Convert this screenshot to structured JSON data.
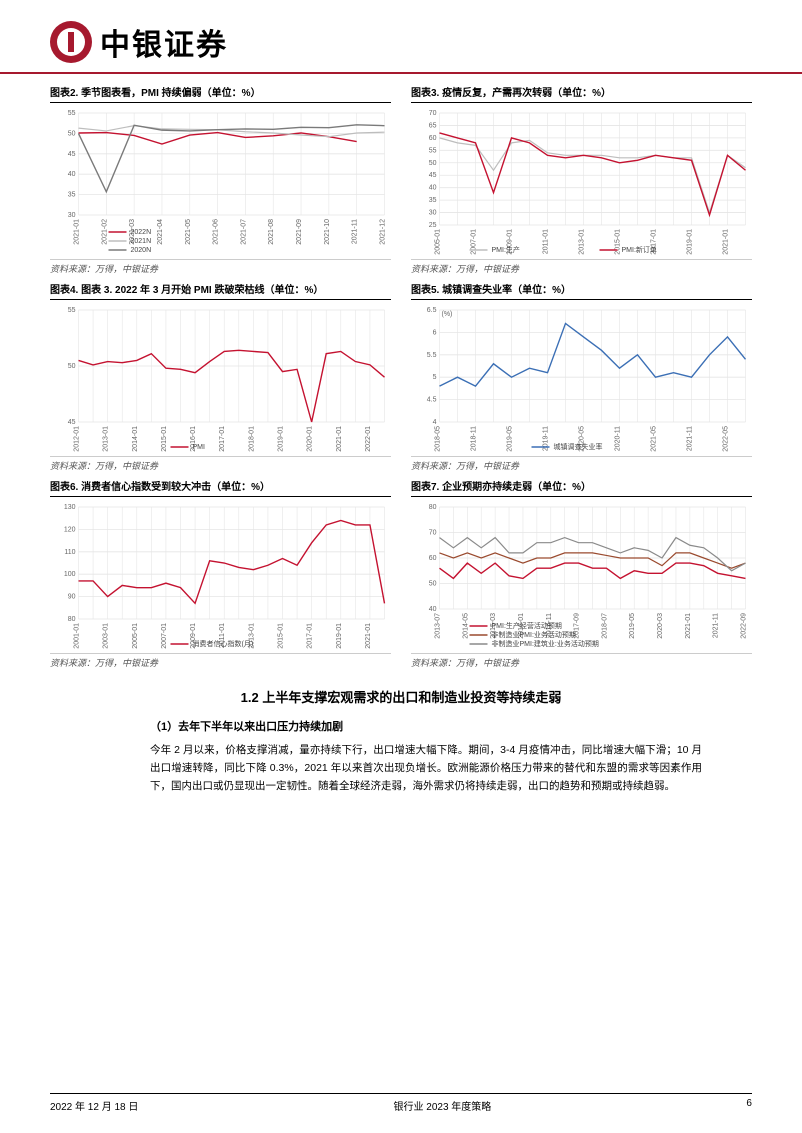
{
  "header": {
    "brand": "中银证券"
  },
  "charts": [
    {
      "title": "图表2. 季节图表看，PMI 持续偏弱（单位：%）",
      "source": "资料来源：万得，中银证券",
      "type": "line",
      "ylim": [
        30,
        55
      ],
      "yticks": [
        30,
        35,
        40,
        45,
        50,
        55
      ],
      "xlabels": [
        "2021-01",
        "2021-02",
        "2021-03",
        "2021-04",
        "2021-05",
        "2021-06",
        "2021-07",
        "2021-08",
        "2021-09",
        "2021-10",
        "2021-11",
        "2021-12"
      ],
      "grid_color": "#e5e5e5",
      "bg": "#ffffff",
      "series": [
        {
          "name": "2022N",
          "color": "#c41230",
          "width": 1.4,
          "values": [
            50.1,
            50.2,
            49.5,
            47.4,
            49.6,
            50.2,
            49,
            49.4,
            50.1,
            49.2,
            48,
            null
          ]
        },
        {
          "name": "2021N",
          "color": "#bdbdbd",
          "width": 1.2,
          "values": [
            51.3,
            50.6,
            51.9,
            51.1,
            51,
            50.9,
            50.4,
            50.1,
            49.6,
            49.2,
            50.1,
            50.3
          ]
        },
        {
          "name": "2020N",
          "color": "#7a7a7a",
          "width": 1.4,
          "values": [
            50,
            35.7,
            52,
            50.8,
            50.6,
            50.9,
            51.1,
            51,
            51.5,
            51.4,
            52.1,
            51.9
          ]
        }
      ],
      "legend_pos": "bottom"
    },
    {
      "title": "图表3. 疫情反复，产需再次转弱（单位：%）",
      "source": "资料来源：万得，中银证券",
      "type": "line",
      "ylim": [
        25,
        70
      ],
      "yticks": [
        25,
        30,
        35,
        40,
        45,
        50,
        55,
        60,
        65,
        70
      ],
      "xlabels": [
        "2005-01",
        "2006-01",
        "2007-01",
        "2008-01",
        "2009-01",
        "2010-01",
        "2011-01",
        "2012-01",
        "2013-01",
        "2014-01",
        "2015-01",
        "2016-01",
        "2017-01",
        "2018-01",
        "2019-01",
        "2020-01",
        "2021-01",
        "2022-01"
      ],
      "grid_color": "#e5e5e5",
      "bg": "#ffffff",
      "series": [
        {
          "name": "PMI:生产",
          "color": "#bdbdbd",
          "width": 1.2,
          "values": [
            60,
            58,
            57,
            47,
            58,
            59,
            54,
            53,
            53,
            53,
            52,
            52,
            53,
            52,
            52,
            30,
            53,
            48
          ]
        },
        {
          "name": "PMI:新订单",
          "color": "#c41230",
          "width": 1.4,
          "values": [
            62,
            60,
            58,
            38,
            60,
            58,
            53,
            52,
            53,
            52,
            50,
            51,
            53,
            52,
            51,
            29,
            53,
            47
          ]
        }
      ],
      "legend_pos": "bottom"
    },
    {
      "title": "图表4. 图表 3. 2022 年 3 月开始 PMI 跌破荣枯线（单位：%）",
      "source": "资料来源：万得，中银证券",
      "type": "line",
      "ylim": [
        45,
        55
      ],
      "yticks": [
        45,
        50,
        55
      ],
      "xlabels": [
        "2012-01",
        "2012-07",
        "2013-01",
        "2013-07",
        "2014-01",
        "2014-07",
        "2015-01",
        "2015-07",
        "2016-01",
        "2016-07",
        "2017-01",
        "2017-07",
        "2018-01",
        "2018-07",
        "2019-01",
        "2019-07",
        "2020-01",
        "2020-07",
        "2021-01",
        "2021-07",
        "2022-01",
        "2022-07"
      ],
      "grid_color": "#e5e5e5",
      "bg": "#ffffff",
      "series": [
        {
          "name": "PMI",
          "color": "#c41230",
          "width": 1.4,
          "values": [
            50.5,
            50.1,
            50.4,
            50.3,
            50.5,
            51.1,
            49.8,
            49.7,
            49.4,
            50.4,
            51.3,
            51.4,
            51.3,
            51.2,
            49.5,
            49.7,
            45,
            51.1,
            51.3,
            50.4,
            50.1,
            49
          ]
        }
      ],
      "legend_pos": "bottom"
    },
    {
      "title": "图表5. 城镇调查失业率（单位：%）",
      "source": "资料来源：万得，中银证券",
      "type": "line",
      "ylim": [
        4.0,
        6.5
      ],
      "yticks": [
        4.0,
        4.5,
        5.0,
        5.5,
        6.0,
        6.5
      ],
      "xlabels": [
        "2018-05",
        "2018-08",
        "2018-11",
        "2019-02",
        "2019-05",
        "2019-08",
        "2019-11",
        "2020-02",
        "2020-05",
        "2020-08",
        "2020-11",
        "2021-02",
        "2021-05",
        "2021-08",
        "2021-11",
        "2022-02",
        "2022-05",
        "2022-08"
      ],
      "grid_color": "#e5e5e5",
      "bg": "#ffffff",
      "ylabel": "(%)",
      "series": [
        {
          "name": "城镇调查失业率",
          "color": "#3b6fb5",
          "width": 1.4,
          "values": [
            4.8,
            5.0,
            4.8,
            5.3,
            5.0,
            5.2,
            5.1,
            6.2,
            5.9,
            5.6,
            5.2,
            5.5,
            5.0,
            5.1,
            5.0,
            5.5,
            5.9,
            5.4
          ]
        }
      ],
      "legend_pos": "bottom"
    },
    {
      "title": "图表6. 消费者信心指数受到较大冲击（单位：%）",
      "source": "资料来源：万得，中银证券",
      "type": "line",
      "ylim": [
        80,
        130
      ],
      "yticks": [
        80,
        90,
        100,
        110,
        120,
        130
      ],
      "xlabels": [
        "2001-01",
        "2002-01",
        "2003-01",
        "2004-01",
        "2005-01",
        "2006-01",
        "2007-01",
        "2008-01",
        "2009-01",
        "2010-01",
        "2011-01",
        "2012-01",
        "2013-01",
        "2014-01",
        "2015-01",
        "2016-01",
        "2017-01",
        "2018-01",
        "2019-01",
        "2020-01",
        "2021-01",
        "2022-01"
      ],
      "grid_color": "#e5e5e5",
      "bg": "#ffffff",
      "series": [
        {
          "name": "消费者信心指数(月)",
          "color": "#c41230",
          "width": 1.4,
          "values": [
            97,
            97,
            90,
            95,
            94,
            94,
            96,
            94,
            87,
            106,
            105,
            103,
            102,
            104,
            107,
            104,
            114,
            122,
            124,
            122,
            122,
            87
          ]
        }
      ],
      "legend_pos": "bottom"
    },
    {
      "title": "图表7. 企业预期亦持续走弱（单位：%）",
      "source": "资料来源：万得，中银证券",
      "type": "line",
      "ylim": [
        40,
        80
      ],
      "yticks": [
        40,
        50,
        60,
        70,
        80
      ],
      "xlabels": [
        "2013-07",
        "2013-12",
        "2014-05",
        "2014-10",
        "2015-03",
        "2015-08",
        "2016-01",
        "2016-06",
        "2016-11",
        "2017-04",
        "2017-09",
        "2018-02",
        "2018-07",
        "2018-12",
        "2019-05",
        "2019-10",
        "2020-03",
        "2020-08",
        "2021-01",
        "2021-06",
        "2021-11",
        "2022-04",
        "2022-09"
      ],
      "grid_color": "#e5e5e5",
      "bg": "#ffffff",
      "series": [
        {
          "name": "PMI:生产经营活动预期",
          "color": "#c41230",
          "width": 1.4,
          "values": [
            56,
            52,
            58,
            54,
            58,
            53,
            52,
            56,
            56,
            58,
            58,
            56,
            56,
            52,
            55,
            54,
            54,
            58,
            58,
            57,
            54,
            53,
            52
          ]
        },
        {
          "name": "非制造业PMI:业务活动预期",
          "color": "#9a4a2e",
          "width": 1.2,
          "values": [
            62,
            60,
            62,
            60,
            62,
            60,
            58,
            60,
            60,
            62,
            62,
            62,
            61,
            60,
            60,
            60,
            57,
            62,
            62,
            60,
            58,
            56,
            58
          ]
        },
        {
          "name": "非制造业PMI:建筑业:业务活动预期",
          "color": "#8a8a8a",
          "width": 1.2,
          "values": [
            68,
            64,
            68,
            64,
            68,
            62,
            62,
            66,
            66,
            68,
            66,
            66,
            64,
            62,
            64,
            63,
            60,
            68,
            65,
            64,
            60,
            55,
            58
          ]
        }
      ],
      "legend_pos": "bottom"
    }
  ],
  "section": {
    "title": "1.2 上半年支撑宏观需求的出口和制造业投资等持续走弱",
    "sub": "（1）去年下半年以来出口压力持续加剧",
    "body": "今年 2 月以来，价格支撑消减，量亦持续下行，出口增速大幅下降。期间，3-4 月疫情冲击，同比增速大幅下滑；10 月出口增速转降，同比下降 0.3%，2021 年以来首次出现负增长。欧洲能源价格压力带来的替代和东盟的需求等因素作用下，国内出口或仍显现出一定韧性。随着全球经济走弱，海外需求仍将持续走弱，出口的趋势和预期或持续趋弱。"
  },
  "footer": {
    "date": "2022 年 12 月 18 日",
    "doc": "银行业 2023 年度策略",
    "page": "6"
  }
}
